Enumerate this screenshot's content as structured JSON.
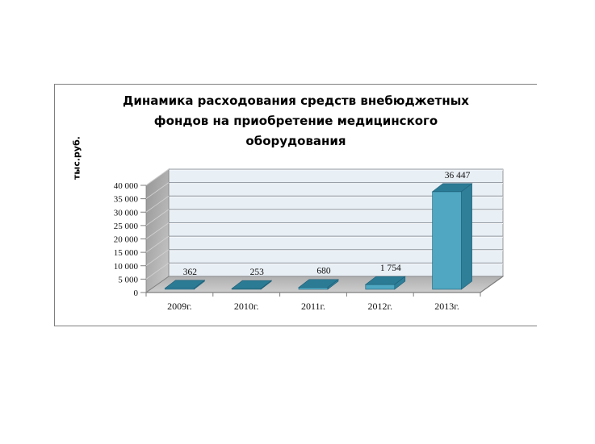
{
  "title": {
    "lines": [
      "Динамика  расходования средств внебюджетных",
      "фондов  на приобретение медицинского",
      "оборудования"
    ]
  },
  "chart_data": {
    "type": "bar",
    "style": "3d",
    "title": "Динамика расходования средств внебюджетных фондов на приобретение медицинского оборудования",
    "categories": [
      "2009г.",
      "2010г.",
      "2011г.",
      "2012г.",
      "2013г."
    ],
    "values": [
      362,
      253,
      680,
      1754,
      36447
    ],
    "data_labels": [
      "362",
      "253",
      "680",
      "1 754",
      "36 447"
    ],
    "xlabel": "",
    "ylabel": "тыс.руб.",
    "ylim": [
      0,
      40000
    ],
    "ytick_step": 5000,
    "ytick_labels": [
      "0",
      "5 000",
      "10 000",
      "15 000",
      "20 000",
      "25 000",
      "30 000",
      "35 000",
      "40 000"
    ],
    "grid": true,
    "legend_position": "none",
    "colors": {
      "bar_front": "#4FA7C1",
      "bar_side": "#2F7F99",
      "bar_top": "#2B7B95",
      "bar_edge": "#1D5E76",
      "back_wall": "#E8EFF5",
      "gridline": "#8E959C",
      "gridline_highlight": "#FAFCFE",
      "wall_dark": "#969696",
      "wall_light": "#C9C9C9",
      "floor_dark": "#AFAFAF",
      "floor_light": "#CDCDCD",
      "axis": "#7F7F7F",
      "frame_border": "#7F7F7F",
      "text": "#000000"
    }
  }
}
